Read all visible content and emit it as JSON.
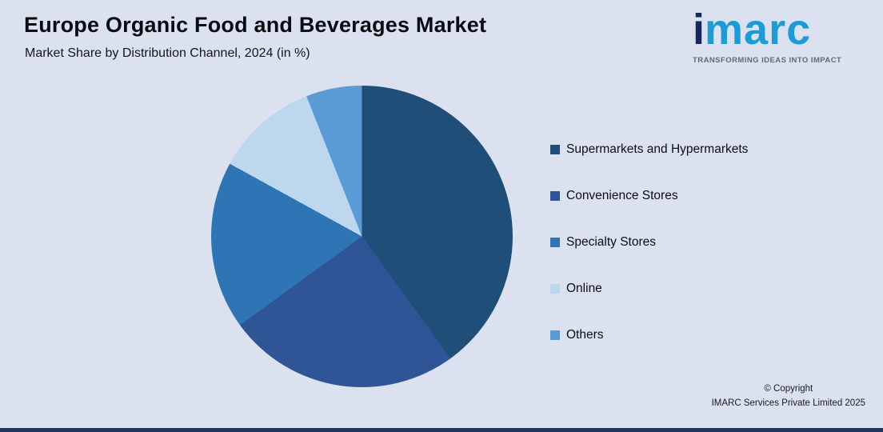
{
  "header": {
    "title": "Europe Organic Food and Beverages Market",
    "subtitle": "Market Share by Distribution Channel, 2024 (in %)"
  },
  "logo": {
    "brand_i": "i",
    "brand_rest": "marc",
    "tagline": "TRANSFORMING IDEAS INTO IMPACT"
  },
  "chart_data": {
    "type": "pie",
    "title": "Europe Organic Food and Beverages Market",
    "subtitle": "Market Share by Distribution Channel, 2024 (in %)",
    "unit": "%",
    "labels": [
      "Supermarkets and Hypermarkets",
      "Convenience Stores",
      "Specialty Stores",
      "Online",
      "Others"
    ],
    "values": [
      40,
      25,
      18,
      11,
      6
    ],
    "colors": [
      "#1F4E79",
      "#2F5597",
      "#2E75B6",
      "#BDD7EE",
      "#5B9BD5"
    ],
    "start_angle_deg": 0,
    "direction": "clockwise",
    "legend_position": "right",
    "grid": false
  },
  "footer": {
    "line1": "© Copyright",
    "line2": "IMARC Services Private Limited 2025"
  }
}
